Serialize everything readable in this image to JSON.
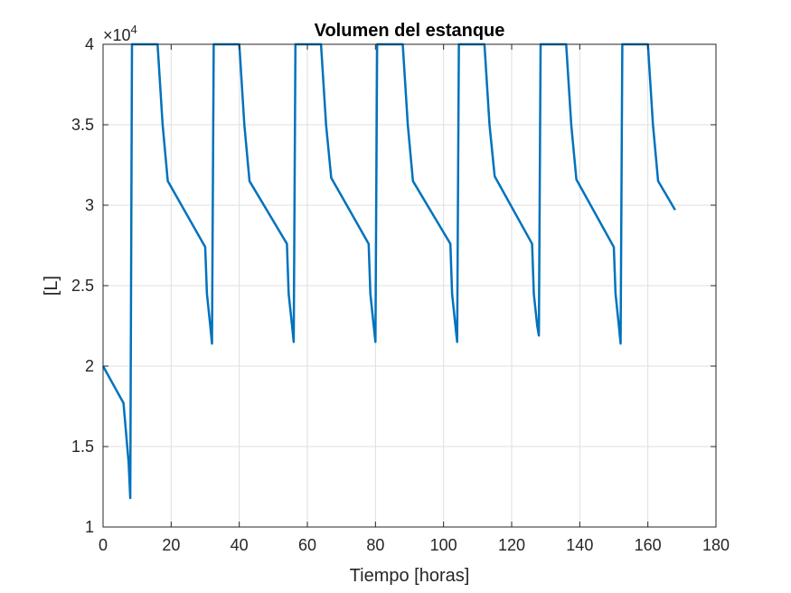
{
  "chart_data": {
    "type": "line",
    "title": "Volumen del estanque",
    "xlabel": "Tiempo [horas]",
    "ylabel": "[L]",
    "y_exponent_label": "×10",
    "y_exponent": "4",
    "xlim": [
      0,
      180
    ],
    "ylim": [
      1,
      4
    ],
    "xticks": [
      0,
      20,
      40,
      60,
      80,
      100,
      120,
      140,
      160,
      180
    ],
    "yticks": [
      1,
      1.5,
      2,
      2.5,
      3,
      3.5,
      4
    ],
    "xtick_labels": [
      "0",
      "20",
      "40",
      "60",
      "80",
      "100",
      "120",
      "140",
      "160",
      "180"
    ],
    "ytick_labels": [
      "1",
      "1.5",
      "2",
      "2.5",
      "3",
      "3.5",
      "4"
    ],
    "grid": true,
    "box": true,
    "series_color": "#0072BD",
    "series": [
      {
        "x": [
          0,
          6,
          7.5,
          8,
          8.5,
          10,
          16,
          17.5,
          19,
          30,
          30.5,
          31.5,
          32,
          32.5,
          34,
          40,
          41.5,
          43,
          54,
          54.5,
          55.5,
          56,
          56.5,
          58,
          64,
          65.5,
          67,
          78,
          78.5,
          79.5,
          80,
          80.5,
          82,
          88,
          89.5,
          91,
          102,
          102.5,
          103.5,
          104,
          104.5,
          106,
          112,
          113.5,
          115,
          126,
          126.5,
          127.5,
          128,
          128.5,
          130,
          136,
          137.5,
          139,
          150,
          150.5,
          151.5,
          152,
          152.5,
          154,
          160,
          161.5,
          163,
          168
        ],
        "y": [
          2.0,
          1.77,
          1.4,
          1.18,
          4.0,
          4.0,
          4.0,
          3.5,
          3.15,
          2.74,
          2.45,
          2.25,
          2.14,
          4.0,
          4.0,
          4.0,
          3.5,
          3.15,
          2.76,
          2.45,
          2.25,
          2.15,
          4.0,
          4.0,
          4.0,
          3.5,
          3.17,
          2.76,
          2.45,
          2.25,
          2.15,
          4.0,
          4.0,
          4.0,
          3.5,
          3.15,
          2.76,
          2.45,
          2.25,
          2.15,
          4.0,
          4.0,
          4.0,
          3.5,
          3.18,
          2.76,
          2.45,
          2.25,
          2.19,
          4.0,
          4.0,
          4.0,
          3.5,
          3.16,
          2.74,
          2.45,
          2.25,
          2.14,
          4.0,
          4.0,
          4.0,
          3.5,
          3.15,
          2.97
        ]
      }
    ]
  }
}
